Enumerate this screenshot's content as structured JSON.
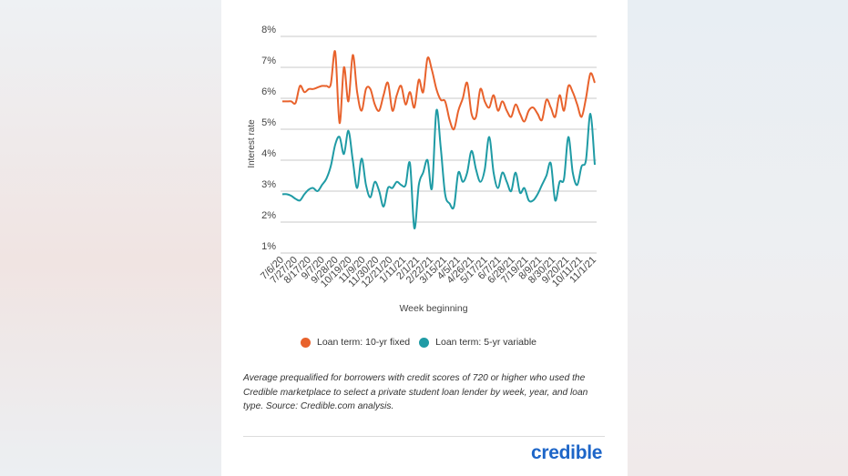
{
  "chart_data": {
    "type": "line",
    "title": "",
    "ylabel": "Interest rate",
    "xlabel": "Week beginning",
    "y_ticks": [
      "1%",
      "2%",
      "3%",
      "4%",
      "5%",
      "6%",
      "7%",
      "8%"
    ],
    "ylim": [
      1,
      8
    ],
    "x_tick_labels": [
      "7/6/20",
      "7/27/20",
      "8/17/20",
      "9/7/20",
      "9/28/20",
      "10/19/20",
      "11/9/20",
      "11/30/20",
      "12/21/20",
      "1/11/21",
      "2/1/21",
      "2/22/21",
      "3/15/21",
      "4/5/21",
      "4/26/21",
      "5/17/21",
      "6/7/21",
      "6/28/21",
      "7/19/21",
      "8/9/21",
      "8/30/21",
      "9/20/21",
      "10/11/21",
      "11/1/21"
    ],
    "series": [
      {
        "name": "Loan term: 10-yr fixed",
        "color": "#e8622c",
        "values": [
          5.9,
          5.9,
          5.9,
          5.85,
          6.4,
          6.2,
          6.3,
          6.3,
          6.35,
          6.4,
          6.4,
          6.45,
          7.5,
          5.2,
          7.0,
          5.9,
          7.4,
          6.2,
          5.6,
          6.3,
          6.3,
          5.8,
          5.6,
          6.1,
          6.5,
          5.6,
          6.1,
          6.4,
          5.8,
          6.2,
          5.7,
          6.6,
          6.2,
          7.3,
          6.9,
          6.3,
          5.95,
          5.9,
          5.3,
          5.0,
          5.6,
          6.0,
          6.5,
          5.5,
          5.4,
          6.3,
          5.9,
          5.7,
          6.1,
          5.6,
          5.9,
          5.6,
          5.4,
          5.8,
          5.5,
          5.25,
          5.6,
          5.7,
          5.5,
          5.3,
          5.95,
          5.7,
          5.4,
          6.1,
          5.6,
          6.4,
          6.2,
          5.8,
          5.4,
          6.0,
          6.8,
          6.5
        ]
      },
      {
        "name": "Loan term: 5-yr variable",
        "color": "#1f9ba5",
        "values": [
          2.9,
          2.9,
          2.85,
          2.75,
          2.7,
          2.9,
          3.05,
          3.1,
          3.0,
          3.2,
          3.4,
          3.8,
          4.5,
          4.75,
          4.2,
          4.95,
          4.0,
          3.1,
          4.05,
          3.2,
          2.8,
          3.3,
          3.0,
          2.5,
          3.1,
          3.1,
          3.3,
          3.2,
          3.2,
          3.9,
          1.8,
          3.2,
          3.6,
          4.0,
          3.1,
          5.6,
          4.4,
          2.9,
          2.6,
          2.5,
          3.6,
          3.3,
          3.6,
          4.3,
          3.7,
          3.3,
          3.7,
          4.75,
          3.6,
          3.1,
          3.6,
          3.3,
          3.0,
          3.6,
          2.95,
          3.1,
          2.7,
          2.7,
          2.9,
          3.2,
          3.5,
          3.9,
          2.7,
          3.3,
          3.4,
          4.75,
          3.6,
          3.2,
          3.8,
          4.0,
          5.5,
          3.85
        ]
      }
    ],
    "legend_position": "bottom",
    "grid": true
  },
  "caption": "Average prequalified for borrowers with credit scores of 720 or higher who used the Credible marketplace to select a private student loan lender by week, year, and loan type. Source: Credible.com analysis.",
  "brand": "credible"
}
